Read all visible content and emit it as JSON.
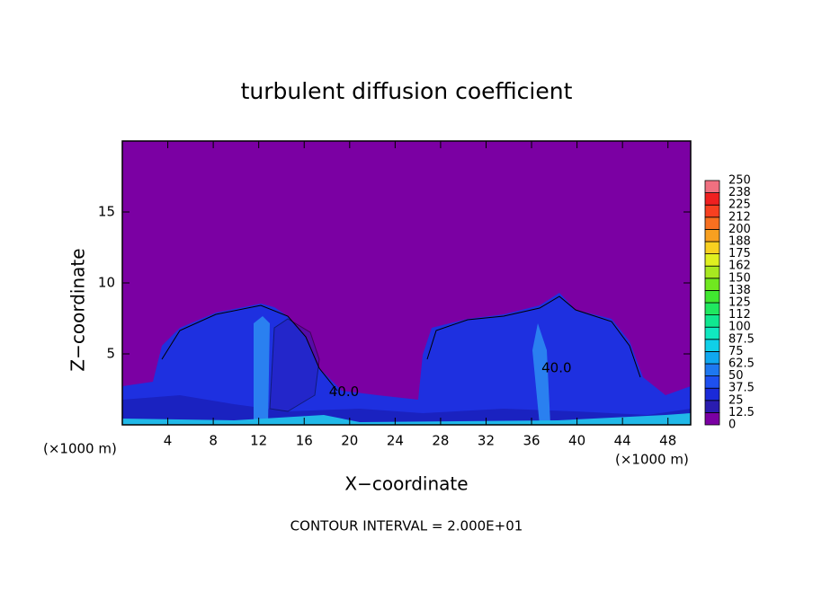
{
  "chart_data": {
    "type": "contour",
    "title": "turbulent diffusion coefficient",
    "xlabel": "X−coordinate",
    "ylabel": "Z−coordinate",
    "xunit_left": "(×1000 m)",
    "xunit_right": "(×1000 m)",
    "footer": "CONTOUR INTERVAL = 2.000E+01",
    "xlim": [
      0,
      50
    ],
    "xticks": [
      4,
      8,
      12,
      16,
      20,
      24,
      28,
      32,
      36,
      40,
      44,
      48
    ],
    "ylim": [
      0,
      20
    ],
    "yticks": [
      5,
      10,
      15
    ],
    "annotations": [
      {
        "text": "40.0",
        "x": 19.5,
        "y": 2.3
      },
      {
        "text": "40.0",
        "x": 38.2,
        "y": 4.0
      }
    ],
    "colorbar": {
      "ticks": [
        0,
        12.5,
        25,
        37.5,
        50,
        62.5,
        75,
        87.5,
        100,
        112,
        125,
        138,
        150,
        162,
        175,
        188,
        200,
        212,
        225,
        238,
        250
      ],
      "colors": [
        "#7b00a3",
        "#2a1cb0",
        "#1a2ad8",
        "#1e50f0",
        "#1e78f0",
        "#10a8f0",
        "#10d0e8",
        "#10e8c0",
        "#10e890",
        "#20e860",
        "#40e830",
        "#70e820",
        "#a8e820",
        "#e0f020",
        "#f8d020",
        "#f8a020",
        "#f87020",
        "#f84020",
        "#f02020",
        "#f07080"
      ]
    }
  }
}
